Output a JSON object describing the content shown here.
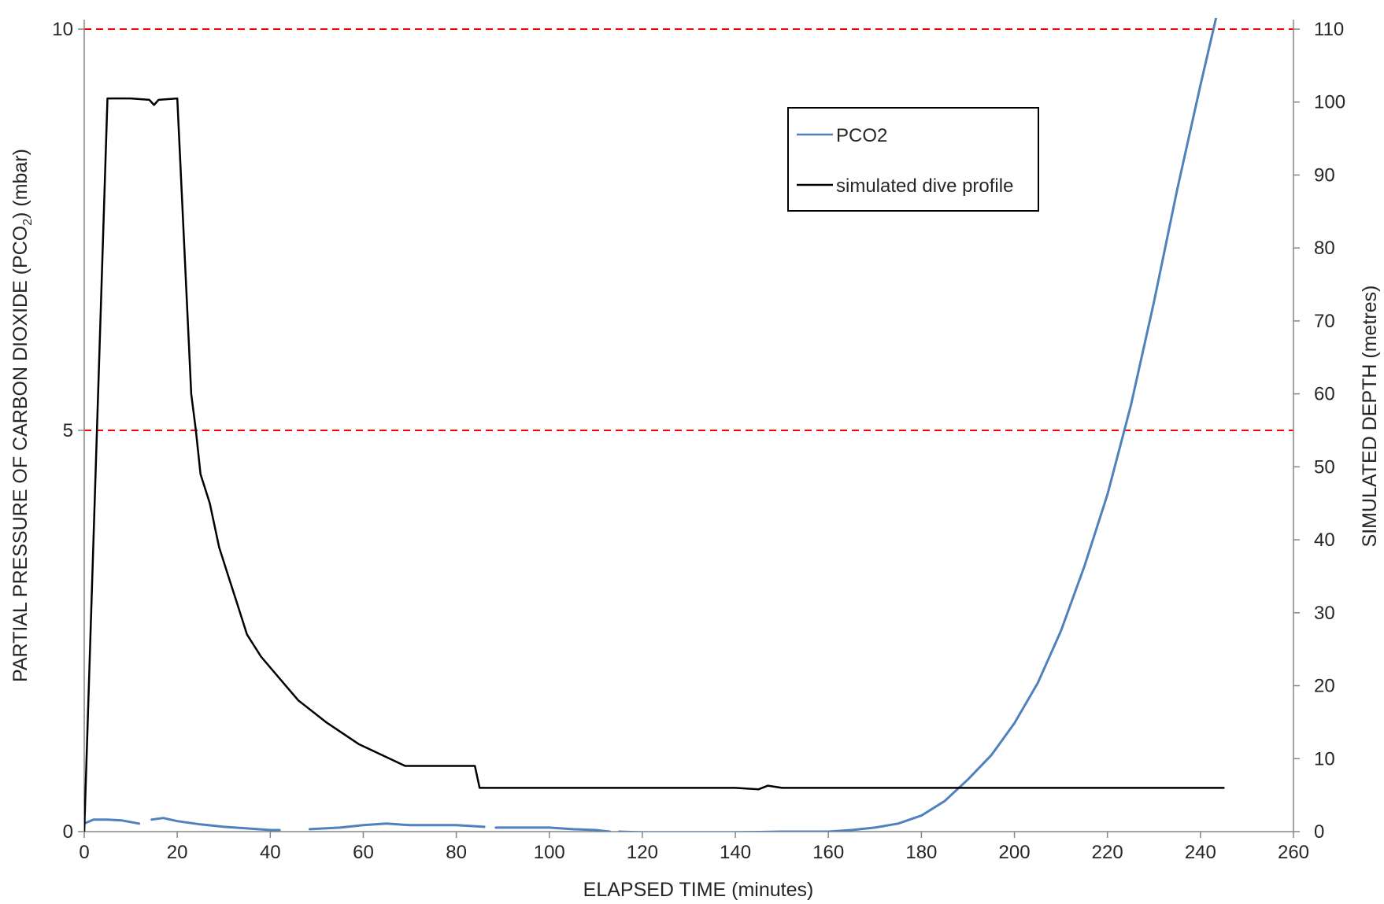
{
  "chart_data": {
    "type": "line",
    "xlabel": "ELAPSED TIME (minutes)",
    "ylabel": "PARTIAL PRESSURE OF CARBON DIOXIDE (PCO2) (mbar)",
    "ylabel_parts": {
      "pre": "PARTIAL PRESSURE OF CARBON DIOXIDE (PCO",
      "sub": "2",
      "post": ") (mbar)"
    },
    "y2label": "SIMULATED DEPTH (metres)",
    "xlim": [
      0,
      260
    ],
    "ylim": [
      0,
      10
    ],
    "y2lim": [
      0,
      110
    ],
    "x_ticks": [
      0,
      20,
      40,
      60,
      80,
      100,
      120,
      140,
      160,
      180,
      200,
      220,
      240,
      260
    ],
    "y_ticks": [
      0,
      5,
      10
    ],
    "y2_ticks": [
      0,
      10,
      20,
      30,
      40,
      50,
      60,
      70,
      80,
      90,
      100,
      110
    ],
    "grid": false,
    "legend_position": "top-right",
    "reference_lines": [
      {
        "axis": "y",
        "value": 10,
        "color": "#ff0000",
        "style": "dashed"
      },
      {
        "axis": "y",
        "value": 5,
        "color": "#ff0000",
        "style": "dashed"
      }
    ],
    "series": [
      {
        "name": "PCO2",
        "axis": "left",
        "color": "#4f81bd",
        "segments": [
          [
            [
              0,
              0.1
            ],
            [
              2,
              0.15
            ],
            [
              5,
              0.15
            ],
            [
              8,
              0.14
            ],
            [
              10,
              0.12
            ],
            [
              11.8,
              0.1
            ]
          ],
          [
            [
              14.5,
              0.15
            ],
            [
              17,
              0.17
            ],
            [
              20,
              0.13
            ],
            [
              25,
              0.09
            ],
            [
              30,
              0.06
            ],
            [
              35,
              0.04
            ],
            [
              40,
              0.02
            ],
            [
              42,
              0.02
            ]
          ],
          [
            [
              48.5,
              0.03
            ],
            [
              55,
              0.05
            ],
            [
              60,
              0.08
            ],
            [
              65,
              0.1
            ],
            [
              70,
              0.08
            ],
            [
              75,
              0.08
            ],
            [
              80,
              0.08
            ],
            [
              86,
              0.06
            ]
          ],
          [
            [
              88.5,
              0.05
            ],
            [
              95,
              0.05
            ],
            [
              100,
              0.05
            ],
            [
              105,
              0.03
            ],
            [
              110,
              0.02
            ],
            [
              113,
              0.0
            ]
          ],
          [
            [
              115,
              0.0
            ],
            [
              120,
              -0.01
            ],
            [
              130,
              -0.01
            ],
            [
              140,
              -0.01
            ],
            [
              150,
              0.0
            ],
            [
              160,
              0.0
            ],
            [
              165,
              0.02
            ],
            [
              170,
              0.05
            ],
            [
              175,
              0.1
            ],
            [
              180,
              0.2
            ],
            [
              185,
              0.38
            ],
            [
              190,
              0.65
            ],
            [
              195,
              0.95
            ],
            [
              200,
              1.35
            ],
            [
              205,
              1.85
            ],
            [
              210,
              2.5
            ],
            [
              215,
              3.3
            ],
            [
              220,
              4.2
            ],
            [
              225,
              5.3
            ],
            [
              230,
              6.6
            ],
            [
              235,
              8.0
            ],
            [
              240,
              9.3
            ],
            [
              244,
              10.3
            ]
          ]
        ]
      },
      {
        "name": "simulated dive profile",
        "axis": "right",
        "color": "#000000",
        "points": [
          [
            0,
            0
          ],
          [
            5,
            100.5
          ],
          [
            10,
            100.5
          ],
          [
            14,
            100.3
          ],
          [
            15,
            99.6
          ],
          [
            16,
            100.3
          ],
          [
            20,
            100.5
          ],
          [
            23,
            60
          ],
          [
            24,
            55
          ],
          [
            25,
            49
          ],
          [
            27,
            45
          ],
          [
            29,
            39
          ],
          [
            31,
            35
          ],
          [
            33,
            31
          ],
          [
            35,
            27
          ],
          [
            38,
            24
          ],
          [
            42,
            21
          ],
          [
            46,
            18
          ],
          [
            52,
            15
          ],
          [
            59,
            12
          ],
          [
            69,
            9
          ],
          [
            84,
            9
          ],
          [
            85,
            6
          ],
          [
            90,
            6
          ],
          [
            100,
            6
          ],
          [
            110,
            6
          ],
          [
            120,
            6
          ],
          [
            130,
            6
          ],
          [
            140,
            6
          ],
          [
            145,
            5.8
          ],
          [
            147,
            6.3
          ],
          [
            150,
            6
          ],
          [
            160,
            6
          ],
          [
            180,
            6
          ],
          [
            200,
            6
          ],
          [
            220,
            6
          ],
          [
            240,
            6
          ],
          [
            245,
            6
          ]
        ]
      }
    ]
  }
}
